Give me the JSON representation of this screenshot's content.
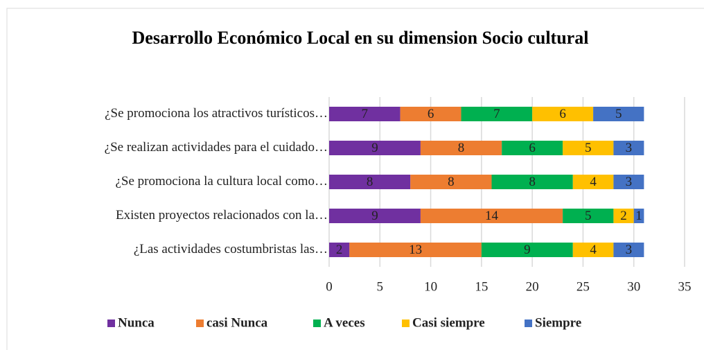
{
  "chart_data": {
    "type": "stacked_bar_horizontal",
    "title": "Desarrollo Económico Local en su dimension Socio cultural",
    "categories": [
      "¿Se promociona los atractivos turísticos…",
      "¿Se realizan actividades para el cuidado…",
      "¿Se promociona la cultura local como…",
      "Existen proyectos relacionados con la…",
      "¿Las actividades costumbristas las…"
    ],
    "series": [
      {
        "name": "Nunca",
        "color": "#7030a0",
        "values": [
          7,
          9,
          8,
          9,
          2
        ]
      },
      {
        "name": "casi Nunca",
        "color": "#ed7d31",
        "values": [
          6,
          8,
          8,
          14,
          13
        ]
      },
      {
        "name": "A veces",
        "color": "#00b050",
        "values": [
          7,
          6,
          8,
          5,
          9
        ]
      },
      {
        "name": "Casi siempre",
        "color": "#ffc000",
        "values": [
          6,
          5,
          4,
          2,
          4
        ]
      },
      {
        "name": "Siempre",
        "color": "#4472c4",
        "values": [
          5,
          3,
          3,
          1,
          3
        ]
      }
    ],
    "xlim": [
      0,
      35
    ],
    "xticks": [
      0,
      5,
      10,
      15,
      20,
      25,
      30,
      35
    ],
    "grid": true,
    "legend": "bottom"
  }
}
